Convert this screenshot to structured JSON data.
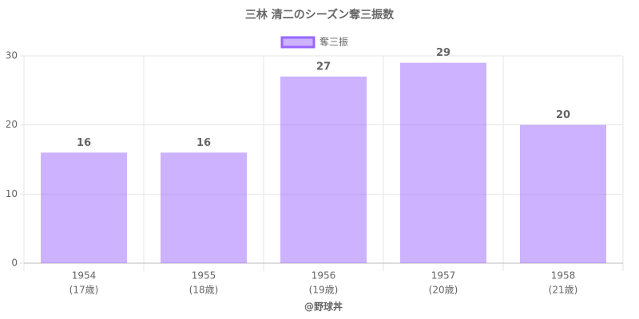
{
  "chart_data": {
    "type": "bar",
    "title": "三林 清二のシーズン奪三振数",
    "categories": [
      [
        "1954",
        "(17歳)"
      ],
      [
        "1955",
        "(18歳)"
      ],
      [
        "1956",
        "(19歳)"
      ],
      [
        "1957",
        "(20歳)"
      ],
      [
        "1958",
        "(21歳)"
      ]
    ],
    "series": [
      {
        "name": "奪三振",
        "color": "#9966ff",
        "values": [
          16,
          16,
          27,
          29,
          20
        ]
      }
    ],
    "ylim": [
      0,
      30
    ],
    "yticks": [
      0,
      10,
      20,
      30
    ],
    "grid": true,
    "legend": "top",
    "xlabel": "@野球丼"
  }
}
